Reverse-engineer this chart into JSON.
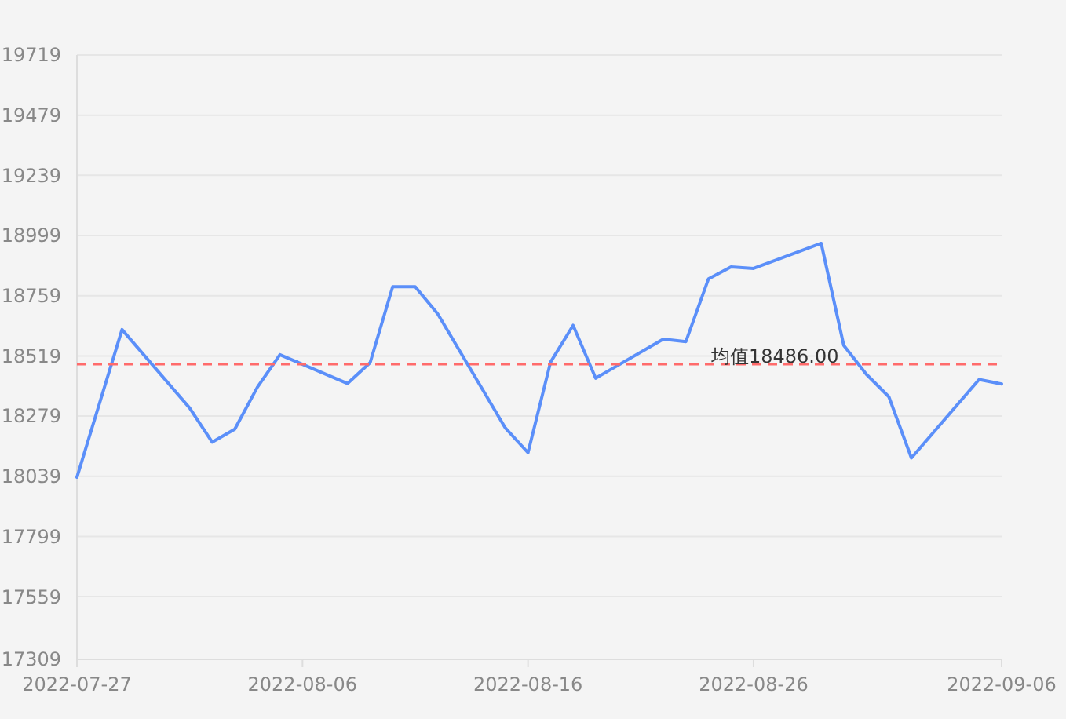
{
  "chart_data": {
    "type": "line",
    "x": [
      "2022-07-27",
      "2022-07-29",
      "2022-08-01",
      "2022-08-02",
      "2022-08-03",
      "2022-08-04",
      "2022-08-05",
      "2022-08-08",
      "2022-08-09",
      "2022-08-10",
      "2022-08-11",
      "2022-08-12",
      "2022-08-15",
      "2022-08-16",
      "2022-08-17",
      "2022-08-18",
      "2022-08-19",
      "2022-08-22",
      "2022-08-23",
      "2022-08-24",
      "2022-08-25",
      "2022-08-26",
      "2022-08-29",
      "2022-08-30",
      "2022-08-31",
      "2022-09-01",
      "2022-09-02",
      "2022-09-05",
      "2022-09-06"
    ],
    "series": [
      {
        "color": "#5b8ff9",
        "values": [
          18035,
          18624,
          18311,
          18175,
          18227,
          18394,
          18524,
          18409,
          18492,
          18795,
          18795,
          18686,
          18231,
          18133,
          18494,
          18641,
          18430,
          18586,
          18576,
          18826,
          18874,
          18868,
          18968,
          18561,
          18446,
          18356,
          18112,
          18425,
          18407
        ]
      }
    ],
    "xlim": [
      "2022-07-27",
      "2022-09-06"
    ],
    "xticks": [
      "2022-07-27",
      "2022-08-06",
      "2022-08-16",
      "2022-08-26",
      "2022-09-06"
    ],
    "ylim": [
      17309,
      19719
    ],
    "yticks": [
      17309,
      17559,
      17799,
      18039,
      18279,
      18519,
      18759,
      18999,
      19239,
      19479,
      19719
    ],
    "grid": "y",
    "marker": "none",
    "line_style": "solid",
    "ref_lines": [
      {
        "axis": "y",
        "value": 18486,
        "label": "均值18486.00",
        "color": "#ff6b6b",
        "line_style": "dashed"
      }
    ]
  }
}
